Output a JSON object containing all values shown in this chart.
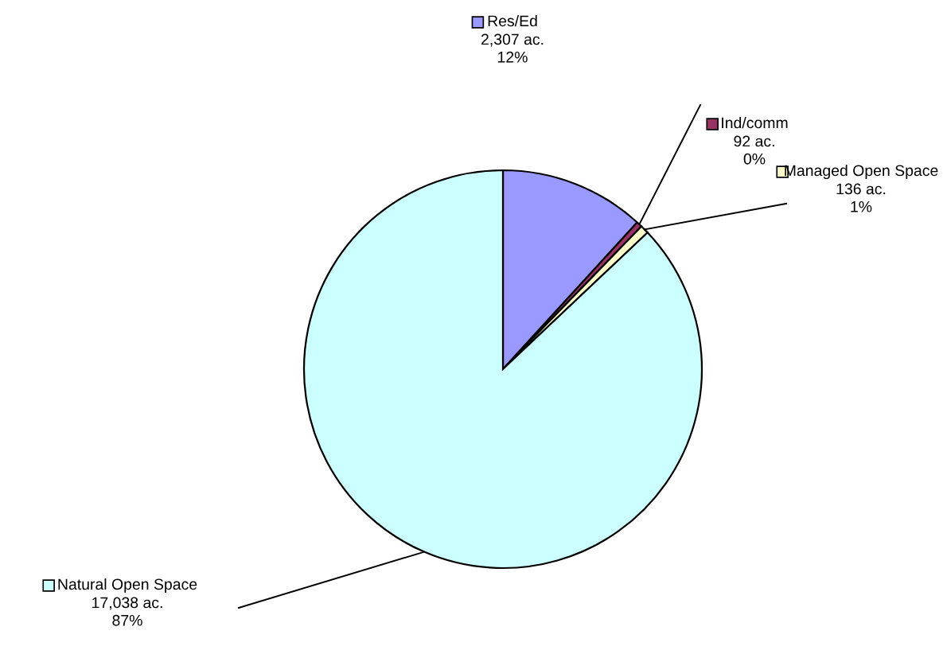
{
  "chart_data": {
    "type": "pie",
    "categories": [
      "Res/Ed",
      "Ind/comm",
      "Managed Open Space",
      "Natural Open Space"
    ],
    "values": [
      2307,
      92,
      136,
      17038
    ],
    "colors": [
      "#9999ff",
      "#993366",
      "#ffffcc",
      "#ccffff"
    ],
    "value_labels": [
      "2,307 ac.\n12%",
      "92 ac.\n0%",
      "136 ac.\n1%",
      "17,038 ac.\n87%"
    ],
    "legend": "top right"
  }
}
